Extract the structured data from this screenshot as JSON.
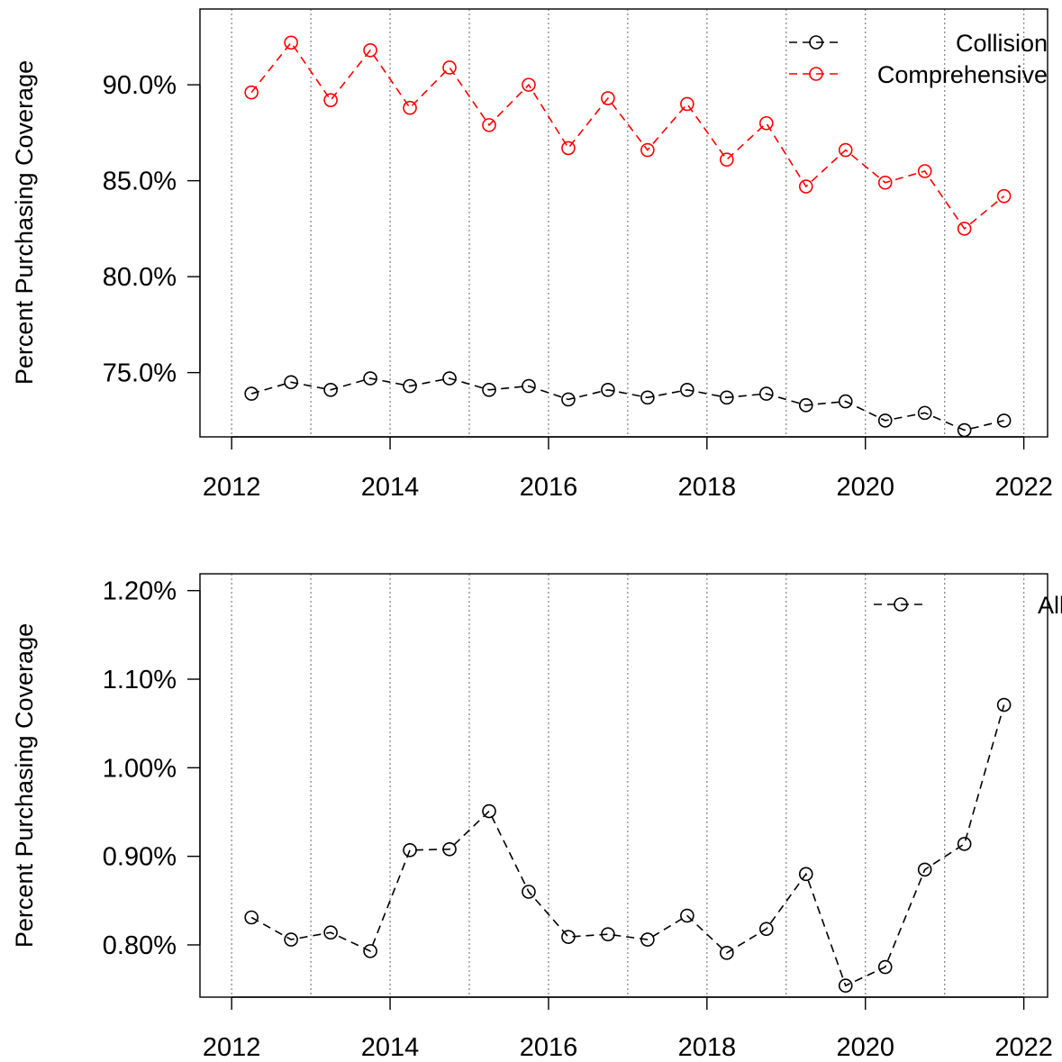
{
  "chart_data": [
    {
      "type": "line",
      "ylabel": "Percent Purchasing Coverage",
      "xlim": [
        2011.6,
        2022.3
      ],
      "ylim": [
        0.7165,
        0.9395
      ],
      "x_ticks": [
        2012,
        2014,
        2016,
        2018,
        2020,
        2022
      ],
      "x_tick_labels": [
        "2012",
        "2014",
        "2016",
        "2018",
        "2020",
        "2022"
      ],
      "y_ticks": [
        0.75,
        0.8,
        0.85,
        0.9
      ],
      "y_tick_labels": [
        "75.0%",
        "80.0%",
        "85.0%",
        "90.0%"
      ],
      "vgrid": [
        2012,
        2013,
        2014,
        2015,
        2016,
        2017,
        2018,
        2019,
        2020,
        2021,
        2022
      ],
      "grid": "vertical dotted",
      "legend_position": "top-right",
      "x": [
        2012.25,
        2012.75,
        2013.25,
        2013.75,
        2014.25,
        2014.75,
        2015.25,
        2015.75,
        2016.25,
        2016.75,
        2017.25,
        2017.75,
        2018.25,
        2018.75,
        2019.25,
        2019.75,
        2020.25,
        2020.75,
        2021.25,
        2021.75
      ],
      "series": [
        {
          "name": "Collision",
          "color": "#000000",
          "values": [
            0.739,
            0.745,
            0.741,
            0.747,
            0.743,
            0.747,
            0.741,
            0.743,
            0.736,
            0.741,
            0.737,
            0.741,
            0.737,
            0.739,
            0.733,
            0.735,
            0.725,
            0.729,
            0.72,
            0.725
          ]
        },
        {
          "name": "Comprehensive",
          "color": "#ff0000",
          "values": [
            0.896,
            0.922,
            0.892,
            0.918,
            0.888,
            0.909,
            0.879,
            0.9,
            0.867,
            0.893,
            0.866,
            0.89,
            0.861,
            0.88,
            0.847,
            0.866,
            0.849,
            0.855,
            0.825,
            0.842
          ]
        }
      ]
    },
    {
      "type": "line",
      "ylabel": "Percent Purchasing Coverage",
      "xlim": [
        2011.6,
        2022.3
      ],
      "ylim": [
        0.00741,
        0.01219
      ],
      "x_ticks": [
        2012,
        2014,
        2016,
        2018,
        2020,
        2022
      ],
      "x_tick_labels": [
        "2012",
        "2014",
        "2016",
        "2018",
        "2020",
        "2022"
      ],
      "y_ticks": [
        0.008,
        0.009,
        0.01,
        0.011,
        0.012
      ],
      "y_tick_labels": [
        "0.80%",
        "0.90%",
        "1.00%",
        "1.10%",
        "1.20%"
      ],
      "vgrid": [
        2012,
        2013,
        2014,
        2015,
        2016,
        2017,
        2018,
        2019,
        2020,
        2021,
        2022
      ],
      "grid": "vertical dotted",
      "legend_position": "top-right",
      "x": [
        2012.25,
        2012.75,
        2013.25,
        2013.75,
        2014.25,
        2014.75,
        2015.25,
        2015.75,
        2016.25,
        2016.75,
        2017.25,
        2017.75,
        2018.25,
        2018.75,
        2019.25,
        2019.75,
        2020.25,
        2020.75,
        2021.25,
        2021.75
      ],
      "series": [
        {
          "name": "All Perils",
          "color": "#000000",
          "values": [
            0.00831,
            0.00806,
            0.00814,
            0.00793,
            0.00907,
            0.00908,
            0.00951,
            0.0086,
            0.00809,
            0.00812,
            0.00806,
            0.00833,
            0.00791,
            0.00818,
            0.0088,
            0.00754,
            0.00775,
            0.00885,
            0.00914,
            0.01071
          ]
        }
      ]
    }
  ]
}
